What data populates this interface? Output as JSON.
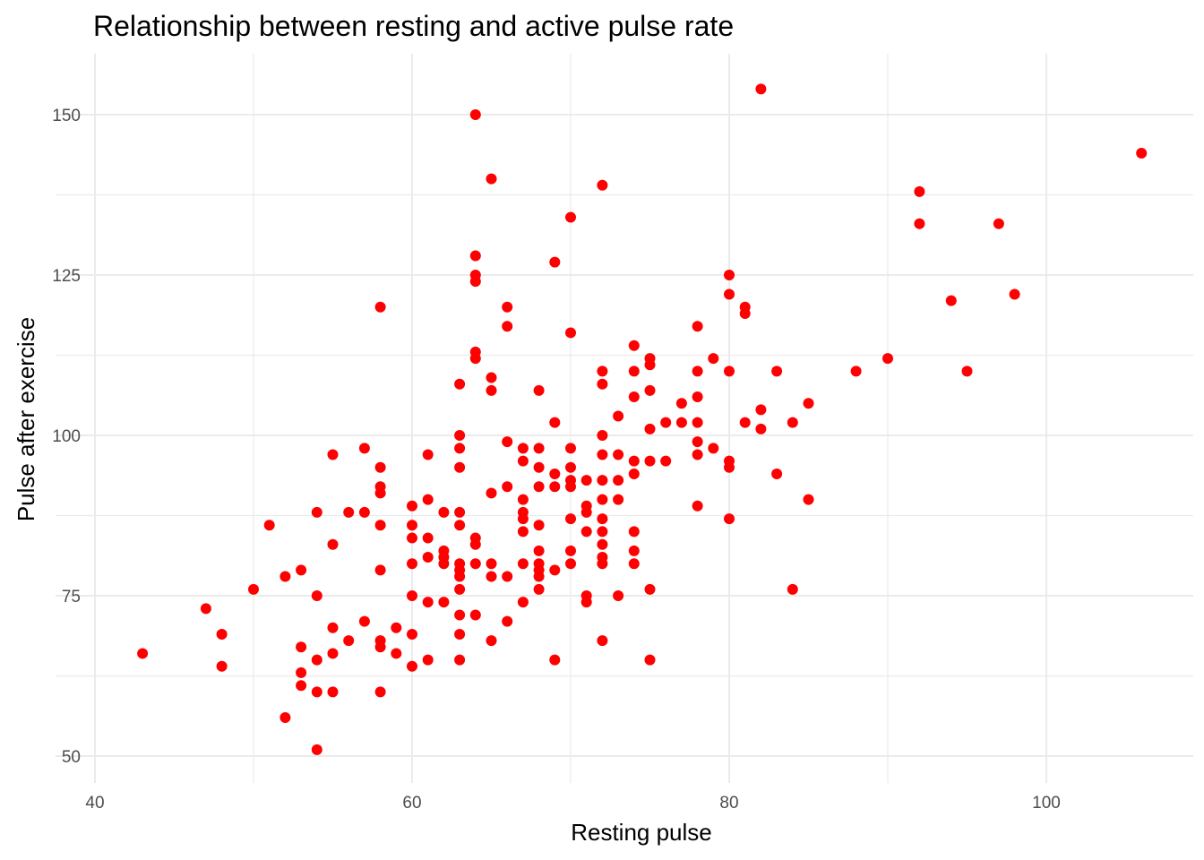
{
  "chart_data": {
    "type": "scatter",
    "title": "Relationship between resting and active pulse rate",
    "xlabel": "Resting pulse",
    "ylabel": "Pulse after exercise",
    "xlim": [
      38,
      109
    ],
    "ylim": [
      46,
      158
    ],
    "x_ticks": [
      40,
      60,
      80,
      100
    ],
    "y_ticks": [
      50,
      75,
      100,
      125,
      150
    ],
    "x_tick_labels": [
      "40",
      "60",
      "80",
      "100"
    ],
    "y_tick_labels": [
      "50",
      "75",
      "100",
      "125",
      "150"
    ],
    "grid": true,
    "point_color": "#ff0000",
    "series": [
      {
        "points": [
          [
            43,
            66
          ],
          [
            47,
            73
          ],
          [
            48,
            69
          ],
          [
            48,
            64
          ],
          [
            50,
            76
          ],
          [
            51,
            86
          ],
          [
            52,
            78
          ],
          [
            52,
            56
          ],
          [
            53,
            79
          ],
          [
            53,
            67
          ],
          [
            53,
            63
          ],
          [
            53,
            61
          ],
          [
            54,
            88
          ],
          [
            54,
            75
          ],
          [
            54,
            65
          ],
          [
            54,
            60
          ],
          [
            54,
            51
          ],
          [
            55,
            97
          ],
          [
            55,
            83
          ],
          [
            55,
            70
          ],
          [
            55,
            66
          ],
          [
            55,
            60
          ],
          [
            56,
            88
          ],
          [
            56,
            68
          ],
          [
            57,
            98
          ],
          [
            57,
            88
          ],
          [
            57,
            71
          ],
          [
            58,
            120
          ],
          [
            58,
            95
          ],
          [
            58,
            92
          ],
          [
            58,
            91
          ],
          [
            58,
            86
          ],
          [
            58,
            79
          ],
          [
            58,
            68
          ],
          [
            58,
            67
          ],
          [
            58,
            60
          ],
          [
            59,
            70
          ],
          [
            59,
            66
          ],
          [
            60,
            89
          ],
          [
            60,
            86
          ],
          [
            60,
            84
          ],
          [
            60,
            80
          ],
          [
            60,
            75
          ],
          [
            60,
            69
          ],
          [
            60,
            64
          ],
          [
            61,
            97
          ],
          [
            61,
            90
          ],
          [
            61,
            84
          ],
          [
            61,
            81
          ],
          [
            61,
            74
          ],
          [
            61,
            65
          ],
          [
            62,
            88
          ],
          [
            62,
            82
          ],
          [
            62,
            81
          ],
          [
            62,
            80
          ],
          [
            62,
            74
          ],
          [
            63,
            108
          ],
          [
            63,
            100
          ],
          [
            63,
            98
          ],
          [
            63,
            95
          ],
          [
            63,
            88
          ],
          [
            63,
            86
          ],
          [
            63,
            80
          ],
          [
            63,
            79
          ],
          [
            63,
            78
          ],
          [
            63,
            76
          ],
          [
            63,
            72
          ],
          [
            63,
            69
          ],
          [
            63,
            65
          ],
          [
            64,
            150
          ],
          [
            64,
            128
          ],
          [
            64,
            125
          ],
          [
            64,
            124
          ],
          [
            64,
            113
          ],
          [
            64,
            112
          ],
          [
            64,
            84
          ],
          [
            64,
            83
          ],
          [
            64,
            80
          ],
          [
            64,
            72
          ],
          [
            65,
            140
          ],
          [
            65,
            109
          ],
          [
            65,
            107
          ],
          [
            65,
            91
          ],
          [
            65,
            80
          ],
          [
            65,
            78
          ],
          [
            65,
            68
          ],
          [
            66,
            120
          ],
          [
            66,
            117
          ],
          [
            66,
            99
          ],
          [
            66,
            92
          ],
          [
            66,
            78
          ],
          [
            66,
            71
          ],
          [
            67,
            98
          ],
          [
            67,
            96
          ],
          [
            67,
            90
          ],
          [
            67,
            88
          ],
          [
            67,
            87
          ],
          [
            67,
            85
          ],
          [
            67,
            80
          ],
          [
            67,
            74
          ],
          [
            68,
            107
          ],
          [
            68,
            98
          ],
          [
            68,
            95
          ],
          [
            68,
            92
          ],
          [
            68,
            86
          ],
          [
            68,
            82
          ],
          [
            68,
            80
          ],
          [
            68,
            79
          ],
          [
            68,
            78
          ],
          [
            68,
            76
          ],
          [
            69,
            127
          ],
          [
            69,
            102
          ],
          [
            69,
            94
          ],
          [
            69,
            92
          ],
          [
            69,
            79
          ],
          [
            69,
            65
          ],
          [
            70,
            134
          ],
          [
            70,
            116
          ],
          [
            70,
            98
          ],
          [
            70,
            95
          ],
          [
            70,
            93
          ],
          [
            70,
            92
          ],
          [
            70,
            87
          ],
          [
            70,
            82
          ],
          [
            70,
            80
          ],
          [
            71,
            93
          ],
          [
            71,
            89
          ],
          [
            71,
            88
          ],
          [
            71,
            85
          ],
          [
            71,
            75
          ],
          [
            71,
            74
          ],
          [
            72,
            139
          ],
          [
            72,
            110
          ],
          [
            72,
            108
          ],
          [
            72,
            100
          ],
          [
            72,
            97
          ],
          [
            72,
            93
          ],
          [
            72,
            90
          ],
          [
            72,
            87
          ],
          [
            72,
            85
          ],
          [
            72,
            83
          ],
          [
            72,
            81
          ],
          [
            72,
            80
          ],
          [
            72,
            68
          ],
          [
            73,
            103
          ],
          [
            73,
            97
          ],
          [
            73,
            93
          ],
          [
            73,
            90
          ],
          [
            73,
            75
          ],
          [
            74,
            114
          ],
          [
            74,
            110
          ],
          [
            74,
            106
          ],
          [
            74,
            96
          ],
          [
            74,
            94
          ],
          [
            74,
            85
          ],
          [
            74,
            82
          ],
          [
            74,
            80
          ],
          [
            75,
            112
          ],
          [
            75,
            111
          ],
          [
            75,
            107
          ],
          [
            75,
            101
          ],
          [
            75,
            96
          ],
          [
            75,
            76
          ],
          [
            75,
            65
          ],
          [
            76,
            102
          ],
          [
            76,
            96
          ],
          [
            77,
            105
          ],
          [
            77,
            102
          ],
          [
            78,
            117
          ],
          [
            78,
            110
          ],
          [
            78,
            106
          ],
          [
            78,
            102
          ],
          [
            78,
            99
          ],
          [
            78,
            97
          ],
          [
            78,
            89
          ],
          [
            79,
            112
          ],
          [
            79,
            98
          ],
          [
            80,
            125
          ],
          [
            80,
            122
          ],
          [
            80,
            110
          ],
          [
            80,
            96
          ],
          [
            80,
            95
          ],
          [
            80,
            87
          ],
          [
            81,
            120
          ],
          [
            81,
            119
          ],
          [
            81,
            102
          ],
          [
            82,
            154
          ],
          [
            82,
            104
          ],
          [
            82,
            101
          ],
          [
            83,
            110
          ],
          [
            83,
            94
          ],
          [
            84,
            102
          ],
          [
            84,
            76
          ],
          [
            85,
            105
          ],
          [
            85,
            90
          ],
          [
            88,
            110
          ],
          [
            90,
            112
          ],
          [
            92,
            138
          ],
          [
            92,
            133
          ],
          [
            94,
            121
          ],
          [
            95,
            110
          ],
          [
            97,
            133
          ],
          [
            98,
            122
          ],
          [
            106,
            144
          ]
        ]
      }
    ]
  }
}
